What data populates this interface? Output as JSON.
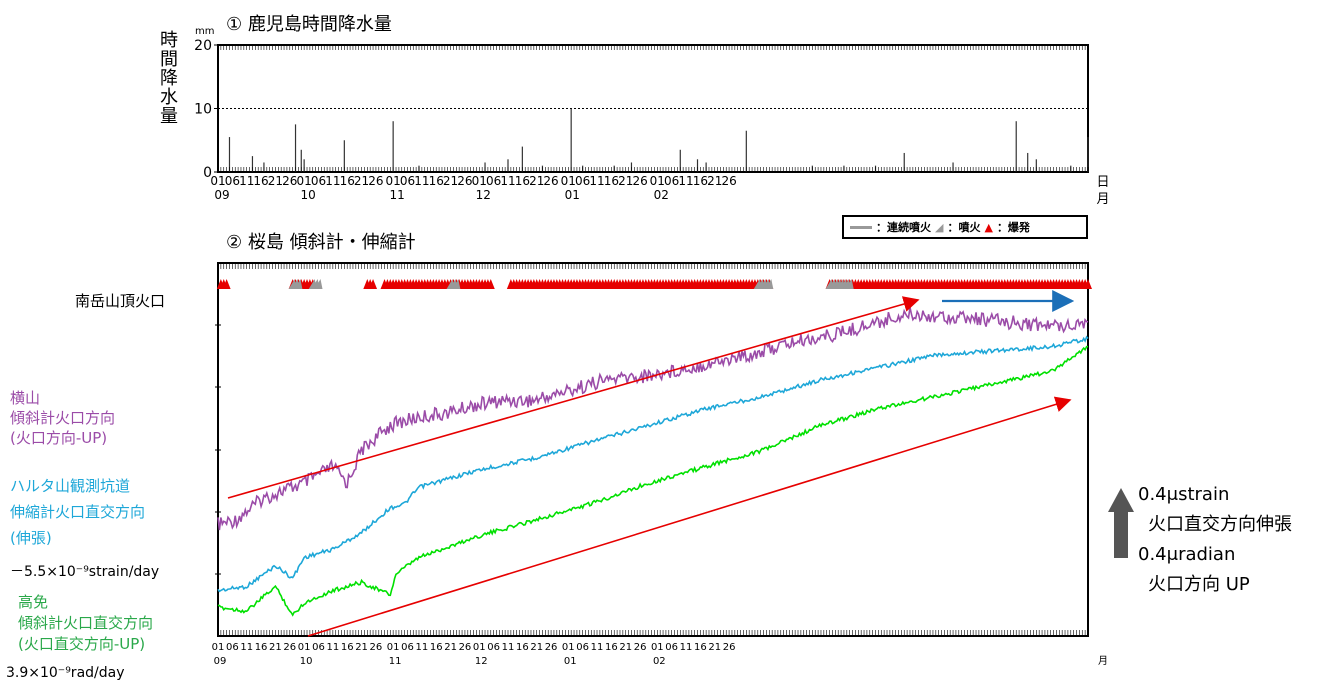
{
  "panel1": {
    "title": "① 鹿児島時間降水量",
    "ylabel": "時間降水量",
    "unit": "mm",
    "yticks": [
      "20",
      "10",
      "0"
    ]
  },
  "panel2": {
    "title": "② 桜島 傾斜計・伸縮計",
    "crater_label": "南岳山頂火口"
  },
  "legend": {
    "continuous": "：連続噴火",
    "eruption": "：噴火",
    "explosion": "：爆発",
    "colors": {
      "continuous": "#999999",
      "eruption": "#999999",
      "explosion": "#e60000"
    }
  },
  "xaxis": {
    "day_ticks": [
      "01",
      "06",
      "11",
      "16",
      "21",
      "26",
      "01",
      "06",
      "11",
      "16",
      "21",
      "26",
      "01",
      "06",
      "11",
      "16",
      "21",
      "26",
      "01",
      "06",
      "11",
      "16",
      "21",
      "26",
      "01",
      "06",
      "11",
      "16",
      "21",
      "26",
      "01",
      "06",
      "11",
      "16",
      "21",
      "26"
    ],
    "months": [
      "09",
      "10",
      "11",
      "12",
      "01",
      "02"
    ],
    "unit_day": "日",
    "unit_month": "月"
  },
  "series_labels": {
    "yokoyama": [
      "横山",
      "傾斜計火口方向",
      "(火口方向-UP)"
    ],
    "harutayama": [
      "ハルタ山観測坑道",
      "伸縮計火口直交方向",
      "(伸張)"
    ],
    "harutayama_trend": "－5.5×10⁻⁹strain/day",
    "takamen": [
      "高免",
      "傾斜計火口直交方向",
      "(火口直交方向-UP)"
    ],
    "takamen_trend": "3.9×10⁻⁹rad/day"
  },
  "scale": {
    "strain": "0.4μstrain",
    "strain_dir": "火口直交方向伸張",
    "radian": "0.4μradian",
    "radian_dir": "火口方向 UP"
  },
  "chart_data": [
    {
      "type": "bar",
      "title": "鹿児島時間降水量",
      "ylabel": "時間降水量",
      "unit": "mm",
      "ylim": [
        0,
        20
      ],
      "reference_line": 10,
      "x_start": "09-01",
      "x_end": "02-28",
      "peaks": [
        {
          "day": 4,
          "value": 5.5
        },
        {
          "day": 12,
          "value": 2.5
        },
        {
          "day": 16,
          "value": 1.5
        },
        {
          "day": 27,
          "value": 7.5
        },
        {
          "day": 29,
          "value": 3.5
        },
        {
          "day": 30,
          "value": 2
        },
        {
          "day": 44,
          "value": 5
        },
        {
          "day": 61,
          "value": 8
        },
        {
          "day": 70,
          "value": 1
        },
        {
          "day": 93,
          "value": 1.5
        },
        {
          "day": 101,
          "value": 2
        },
        {
          "day": 106,
          "value": 4
        },
        {
          "day": 113,
          "value": 1
        },
        {
          "day": 123,
          "value": 10
        },
        {
          "day": 127,
          "value": 1
        },
        {
          "day": 138,
          "value": 1
        },
        {
          "day": 144,
          "value": 1.5
        },
        {
          "day": 161,
          "value": 3.5
        },
        {
          "day": 167,
          "value": 2
        },
        {
          "day": 170,
          "value": 1.5
        },
        {
          "day": 184,
          "value": 6.5
        },
        {
          "day": 207,
          "value": 1
        },
        {
          "day": 218,
          "value": 1
        },
        {
          "day": 229,
          "value": 1
        },
        {
          "day": 239,
          "value": 3
        },
        {
          "day": 256,
          "value": 1.5
        },
        {
          "day": 278,
          "value": 8
        },
        {
          "day": 282,
          "value": 3
        },
        {
          "day": 285,
          "value": 2
        },
        {
          "day": 297,
          "value": 1
        },
        {
          "day": 303,
          "value": 5.5
        }
      ]
    },
    {
      "type": "line",
      "title": "桜島 傾斜計・伸縮計",
      "x_start": "09-01",
      "x_end": "02-28",
      "series": [
        {
          "name": "横山 傾斜計火口方向",
          "color": "#9b4ca8",
          "x": [
            0,
            6,
            15,
            22,
            30,
            40,
            45,
            50,
            55,
            60,
            70,
            80,
            90,
            100,
            110,
            125,
            135,
            150,
            165,
            185,
            200,
            215,
            225,
            240,
            260,
            275,
            290,
            303
          ],
          "y": [
            0.55,
            0.6,
            0.85,
            0.95,
            1.05,
            1.25,
            1.05,
            1.45,
            1.6,
            1.75,
            1.85,
            1.9,
            2.0,
            2.05,
            2.05,
            2.2,
            2.3,
            2.35,
            2.45,
            2.6,
            2.75,
            2.85,
            2.95,
            3.1,
            3.05,
            3.0,
            2.95,
            3.0
          ]
        },
        {
          "name": "ハルタ山観測坑道 伸縮計火口直交方向",
          "color": "#1ea7d8",
          "x": [
            0,
            10,
            20,
            26,
            30,
            40,
            50,
            60,
            65,
            70,
            90,
            110,
            130,
            150,
            170,
            190,
            210,
            230,
            250,
            270,
            290,
            303
          ],
          "y": [
            -0.25,
            -0.2,
            0.05,
            -0.1,
            0.15,
            0.25,
            0.45,
            0.75,
            0.8,
            1.0,
            1.2,
            1.35,
            1.55,
            1.75,
            1.95,
            2.1,
            2.3,
            2.45,
            2.6,
            2.65,
            2.7,
            2.8
          ]
        },
        {
          "name": "高免 傾斜計火口直交方向",
          "color": "#00e000",
          "x": [
            0,
            10,
            20,
            26,
            30,
            40,
            50,
            60,
            62,
            70,
            90,
            110,
            130,
            150,
            170,
            190,
            210,
            230,
            250,
            270,
            290,
            303
          ],
          "y": [
            -0.45,
            -0.5,
            -0.2,
            -0.55,
            -0.4,
            -0.25,
            -0.15,
            -0.3,
            -0.05,
            0.15,
            0.4,
            0.6,
            0.8,
            1.05,
            1.25,
            1.45,
            1.75,
            1.95,
            2.1,
            2.25,
            2.4,
            2.7
          ]
        }
      ],
      "activity": {
        "explosion_ranges": [
          [
            1,
            3
          ],
          [
            26,
            33
          ],
          [
            52,
            54
          ],
          [
            58,
            95
          ],
          [
            102,
            192
          ],
          [
            213,
            303
          ]
        ],
        "eruption_ranges": [
          [
            26,
            28
          ],
          [
            33,
            35
          ],
          [
            81,
            83
          ],
          [
            188,
            192
          ],
          [
            213,
            220
          ]
        ]
      }
    }
  ]
}
